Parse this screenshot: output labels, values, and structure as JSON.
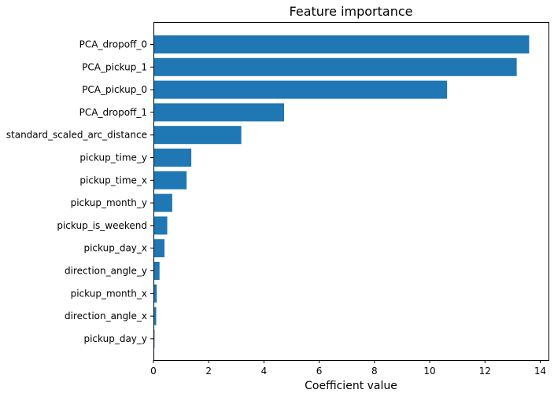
{
  "chart_data": {
    "type": "bar",
    "orientation": "horizontal",
    "title": "Feature importance",
    "xlabel": "Coefficient value",
    "ylabel": "",
    "xlim": [
      0,
      14.3
    ],
    "xticks": [
      0,
      2,
      4,
      6,
      8,
      10,
      12,
      14
    ],
    "grid": false,
    "legend": "none",
    "bar_color": "#1f77b4",
    "categories": [
      "PCA_dropoff_0",
      "PCA_pickup_1",
      "PCA_pickup_0",
      "PCA_dropoff_1",
      "standard_scaled_arc_distance",
      "pickup_time_y",
      "pickup_time_x",
      "pickup_month_y",
      "pickup_is_weekend",
      "pickup_day_x",
      "direction_angle_y",
      "pickup_month_x",
      "direction_angle_x",
      "pickup_day_y"
    ],
    "values": [
      13.6,
      13.15,
      10.63,
      4.73,
      3.18,
      1.37,
      1.2,
      0.68,
      0.5,
      0.4,
      0.22,
      0.12,
      0.1,
      0.04
    ]
  }
}
